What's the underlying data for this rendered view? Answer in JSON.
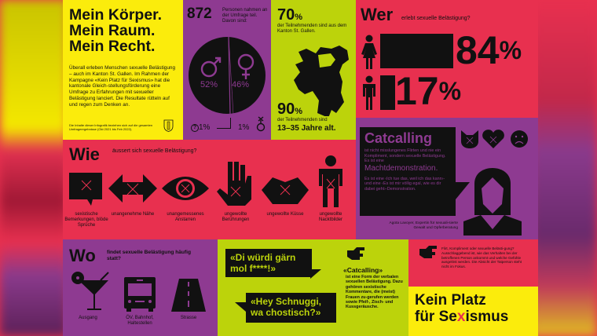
{
  "intro": {
    "title_lines": [
      "Mein Körper.",
      "Mein Raum.",
      "Mein Recht."
    ],
    "body": "Überall erleben Menschen sexuelle Belästigung – auch im Kanton St. Gallen. Im Rahmen der Kampagne «Kein Platz für Sexismus» hat die kantonale Gleich-stellungsförderung eine Umfrage zu Erfahrungen mit sexueller Belästigung lanciert. Die Resultate rütteln auf und regen zum Denken an.",
    "footnote": "Die Inhalte dieser Infografik beziehen sich auf die gesamten Umfrageergebnisse (Okt 2021 bis Feb 2022)."
  },
  "participants": {
    "count": "872",
    "text": "Personen nahmen an der Umfrage teil. Davon sind:",
    "male": "52%",
    "female": "46%",
    "unknown": "1%",
    "other": "1%",
    "male_share": 52,
    "female_share": 46
  },
  "region": {
    "stat1": "70",
    "stat1_unit": "%",
    "stat1_text": "der Teilnehmenden sind aus dem Kanton St. Gallen.",
    "stat2": "90",
    "stat2_unit": "%",
    "stat2_text": "der Teilnehmenden sind",
    "stat2_bold": "13–35 Jahre alt."
  },
  "wer": {
    "title": "Wer",
    "subtitle": "erlebt sexuelle Belästigung?",
    "women": "84",
    "men": "17",
    "unit": "%",
    "women_share": 84,
    "men_share": 17
  },
  "catcalling": {
    "title": "Catcalling",
    "text1": "ist nicht misslungenes Flirten und nie ein Kompliment, sondern sexuelle Belästigung. Es ist eine",
    "emph": "Machtdemonstration.",
    "text2": "Es ist eine ‹Ich tue das, weil ich das kann›- und eine ‹Es ist mir völlig egal, wie es dir dabei geht›-Demonstration.",
    "quote_by": "Agota Lavoyer, Expertin für sexuali-sierte Gewalt und Opferberatung"
  },
  "wie": {
    "title": "Wie",
    "subtitle": "äussert sich sexuelle Belästigung?",
    "items": [
      {
        "label": "sexistische Bemerkungen, blöde Sprüche",
        "icon": "speech-bubble-icon"
      },
      {
        "label": "unangenehme Nähe",
        "icon": "double-arrow-icon"
      },
      {
        "label": "unangemessenes Anstarren",
        "icon": "eye-icon"
      },
      {
        "label": "ungewollte Berührungen",
        "icon": "hand-icon"
      },
      {
        "label": "ungewollte Küsse",
        "icon": "lips-icon"
      },
      {
        "label": "ungewollte Nacktbilder",
        "icon": "person-icon"
      }
    ]
  },
  "wo": {
    "title": "Wo",
    "subtitle": "findet sexuelle Belästigung häufig statt?",
    "items": [
      {
        "label": "Ausgang",
        "icon": "cocktail-icon"
      },
      {
        "label": "ÖV, Bahnhof, Haltestellen",
        "icon": "bus-icon"
      },
      {
        "label": "Strasse",
        "icon": "road-icon"
      }
    ]
  },
  "quotes": {
    "q1": "«Di würdi gärn mol f****!»",
    "q2": "«Hey Schnuggi, wa chostisch?»",
    "cc_title": "«Catcalling»",
    "cc_text": "ist eine Form der verbalen sexuellen Belästigung. Dazu gehören sexistische Kommentare, die (meist) Frauen zu-gerufen werden sowie Pfeif-, Zisch- und Kussgeräusche."
  },
  "flirt": {
    "text": "Flirt, Kompliment oder sexuelle Belästi-gung? Ausschlaggebend ist, wie das Verhalten bei der betroffenen Person ankommt und welche Gefühle ausgelöst werden. Die Absicht der Tatperson steht nicht im Fokus."
  },
  "campaign": {
    "line1": "Kein Platz",
    "line2a": "für Se",
    "line2x": "x",
    "line2b": "ismus"
  },
  "colors": {
    "yellow": "#fbec0c",
    "purple": "#8e3a91",
    "lime": "#bcd30b",
    "red": "#e8304f",
    "black": "#111111"
  }
}
